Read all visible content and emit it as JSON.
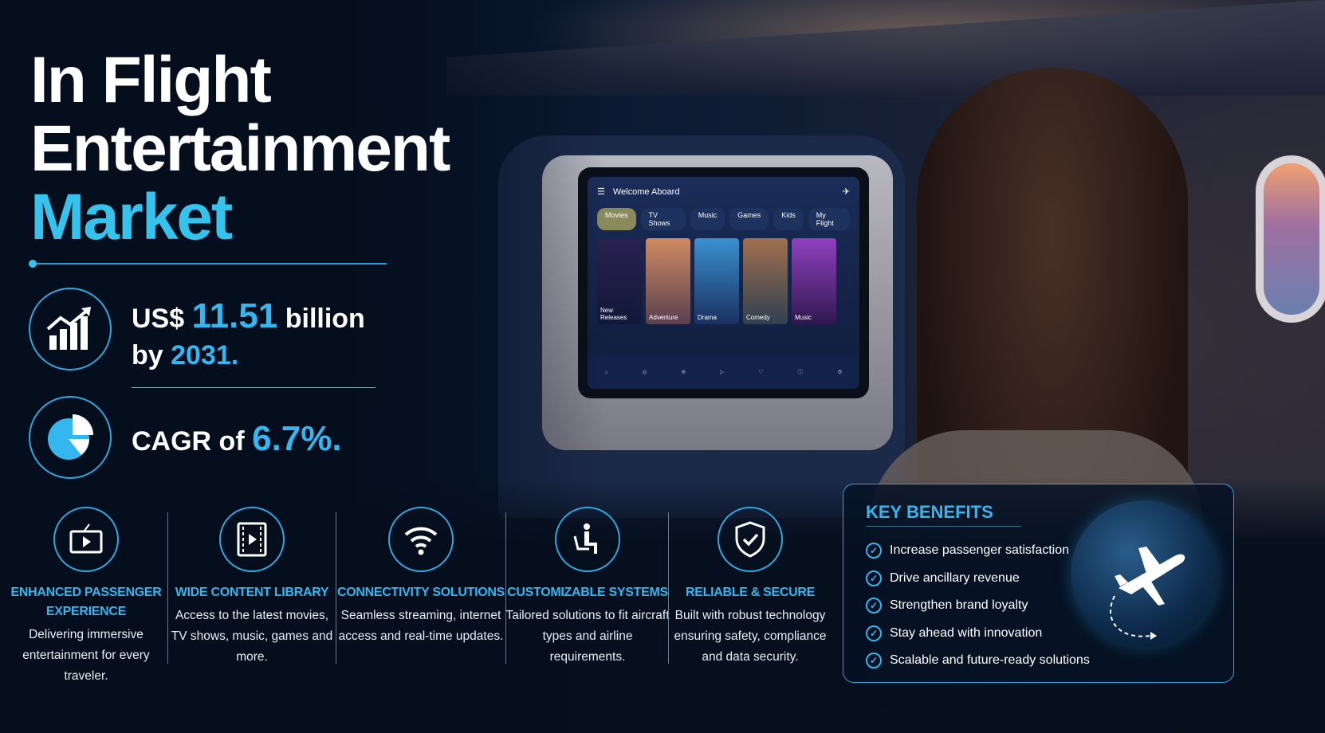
{
  "title": {
    "line1": "In Flight",
    "line2": "Entertainment",
    "line3": "Market"
  },
  "stats": [
    {
      "icon": "growth-chart-icon",
      "prefix": "US$ ",
      "value": "11.51",
      "suffix": " billion",
      "line2_prefix": "by ",
      "line2_value": "2031."
    },
    {
      "icon": "pie-chart-icon",
      "prefix": "CAGR of ",
      "value": "6.7%."
    }
  ],
  "screen": {
    "title": "Welcome Aboard",
    "tabs": [
      "Movies",
      "TV Shows",
      "Music",
      "Games",
      "Kids",
      "My Flight"
    ],
    "posters": [
      "New Releases",
      "Adventure",
      "Drama",
      "Comedy",
      "Music"
    ]
  },
  "features": [
    {
      "icon": "tv-play-icon",
      "title": "ENHANCED PASSENGER EXPERIENCE",
      "desc": "Delivering immersive entertainment for every traveler."
    },
    {
      "icon": "film-play-icon",
      "title": "WIDE CONTENT LIBRARY",
      "desc": "Access to the latest movies, TV shows, music, games and more."
    },
    {
      "icon": "wifi-icon",
      "title": "CONNECTIVITY SOLUTIONS",
      "desc": "Seamless streaming, internet access and real-time updates."
    },
    {
      "icon": "seated-person-icon",
      "title": "CUSTOMIZABLE SYSTEMS",
      "desc": "Tailored solutions to fit aircraft types and airline requirements."
    },
    {
      "icon": "shield-check-icon",
      "title": "RELIABLE & SECURE",
      "desc": "Built with robust technology ensuring safety, compliance and data security."
    }
  ],
  "key_benefits": {
    "title": "KEY BENEFITS",
    "items": [
      "Increase passenger satisfaction",
      "Drive ancillary revenue",
      "Strengthen brand loyalty",
      "Stay ahead with innovation",
      "Scalable and future-ready solutions"
    ]
  },
  "colors": {
    "accent": "#35b6ee",
    "background": "#06101f"
  }
}
